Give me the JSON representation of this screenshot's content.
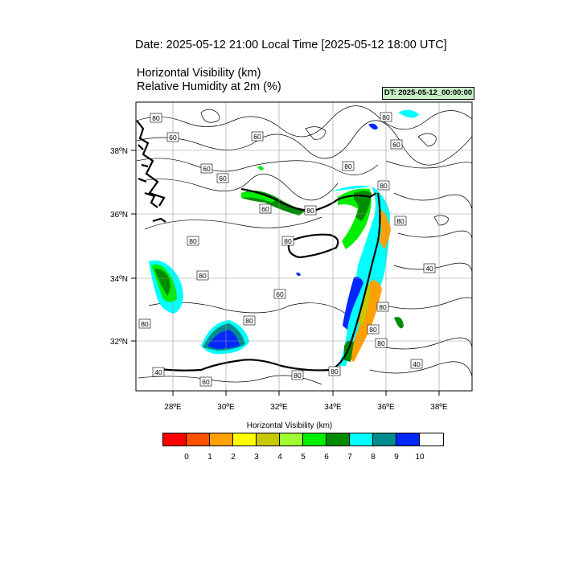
{
  "header": {
    "date_line": "Date: 2025-05-12  21:00 Local Time [2025-05-12  18:00 UTC]",
    "var1": "Horizontal Visibility   (km)",
    "var2": "Relative Humidity at 2m   (%)",
    "dt_badge": "DT: 2025-05-12_00:00:00"
  },
  "map": {
    "lon_labels": [
      "28ºE",
      "30ºE",
      "32ºE",
      "34ºE",
      "36ºE",
      "38ºE"
    ],
    "lat_labels": [
      "38ºN",
      "36ºN",
      "34ºN",
      "32ºN"
    ],
    "contour_labels": [
      "80",
      "60",
      "60",
      "60",
      "60",
      "60",
      "80",
      "80",
      "60",
      "80",
      "80",
      "80",
      "80",
      "80",
      "60",
      "40",
      "80",
      "80",
      "80",
      "80",
      "80",
      "80",
      "40",
      "40",
      "60",
      "80",
      "80"
    ]
  },
  "colorbar": {
    "title": "Horizontal Visibility  (km)",
    "colors": [
      "#ff0000",
      "#ff5000",
      "#ffa000",
      "#ffff00",
      "#c8c800",
      "#a0ff30",
      "#00ee00",
      "#008c00",
      "#00ffff",
      "#008c8c",
      "#0028ff",
      "#ffffff"
    ],
    "ticks": [
      "0",
      "1",
      "2",
      "3",
      "4",
      "5",
      "6",
      "7",
      "8",
      "9",
      "10"
    ]
  }
}
